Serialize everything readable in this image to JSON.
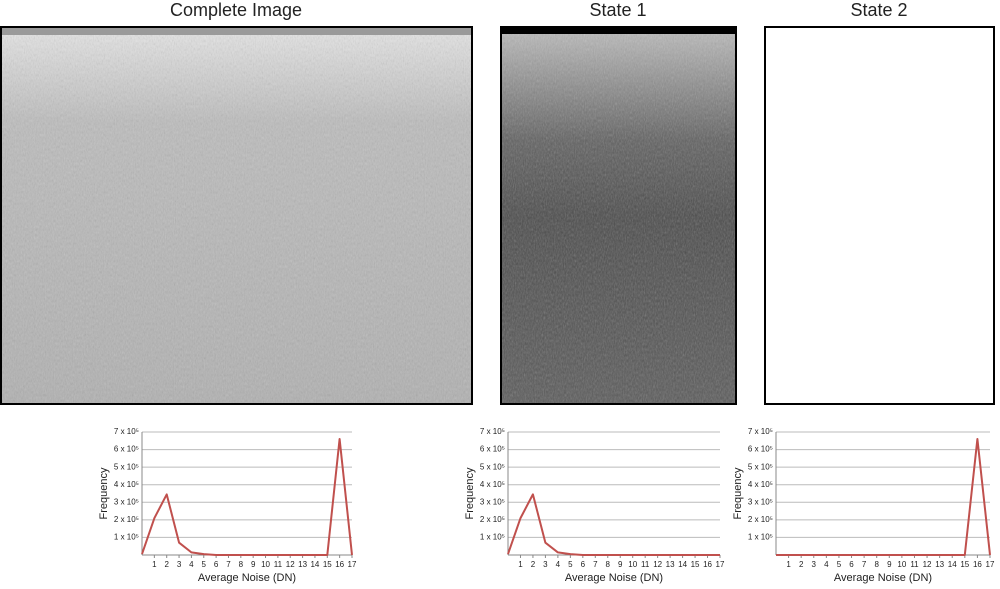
{
  "chart_data": [
    {
      "type": "line",
      "title": "Complete Image",
      "x_label": "Average Noise (DN)",
      "y_label": "Frequency",
      "x": [
        0,
        1,
        2,
        3,
        4,
        5,
        6,
        7,
        8,
        9,
        10,
        11,
        12,
        13,
        14,
        15,
        16,
        17
      ],
      "values": [
        5000,
        210000,
        345000,
        70000,
        15000,
        5000,
        0,
        0,
        0,
        0,
        0,
        0,
        0,
        0,
        0,
        0,
        660000,
        0
      ],
      "color": "#c0504d",
      "xlim": [
        0,
        17
      ],
      "xticks": [
        1,
        2,
        3,
        4,
        5,
        6,
        7,
        8,
        9,
        10,
        11,
        12,
        13,
        14,
        15,
        16,
        17
      ],
      "ylim": [
        0,
        700000
      ],
      "yticks": [
        {
          "value": 100000,
          "label": "1 x 10⁵"
        },
        {
          "value": 200000,
          "label": "2 x 10⁵"
        },
        {
          "value": 300000,
          "label": "3 x 10⁵"
        },
        {
          "value": 400000,
          "label": "4 x 10⁵"
        },
        {
          "value": 500000,
          "label": "5 x 10⁵"
        },
        {
          "value": 600000,
          "label": "6 x 10⁵"
        },
        {
          "value": 700000,
          "label": "7 x 10⁵"
        }
      ],
      "grid": true
    },
    {
      "type": "line",
      "title": "State 1",
      "x_label": "Average Noise (DN)",
      "y_label": "Frequency",
      "x": [
        0,
        1,
        2,
        3,
        4,
        5,
        6,
        7,
        8,
        9,
        10,
        11,
        12,
        13,
        14,
        15,
        16,
        17
      ],
      "values": [
        5000,
        210000,
        345000,
        70000,
        15000,
        5000,
        0,
        0,
        0,
        0,
        0,
        0,
        0,
        0,
        0,
        0,
        0,
        0
      ],
      "color": "#c0504d",
      "xlim": [
        0,
        17
      ],
      "xticks": [
        1,
        2,
        3,
        4,
        5,
        6,
        7,
        8,
        9,
        10,
        11,
        12,
        13,
        14,
        15,
        16,
        17
      ],
      "ylim": [
        0,
        700000
      ],
      "yticks": [
        {
          "value": 100000,
          "label": "1 x 10⁵"
        },
        {
          "value": 200000,
          "label": "2 x 10⁵"
        },
        {
          "value": 300000,
          "label": "3 x 10⁵"
        },
        {
          "value": 400000,
          "label": "4 x 10⁵"
        },
        {
          "value": 500000,
          "label": "5 x 10⁵"
        },
        {
          "value": 600000,
          "label": "6 x 10⁵"
        },
        {
          "value": 700000,
          "label": "7 x 10⁵"
        }
      ],
      "grid": true
    },
    {
      "type": "line",
      "title": "State 2",
      "x_label": "Average Noise (DN)",
      "y_label": "Frequency",
      "x": [
        0,
        1,
        2,
        3,
        4,
        5,
        6,
        7,
        8,
        9,
        10,
        11,
        12,
        13,
        14,
        15,
        16,
        17
      ],
      "values": [
        0,
        0,
        0,
        0,
        0,
        0,
        0,
        0,
        0,
        0,
        0,
        0,
        0,
        0,
        0,
        0,
        660000,
        0
      ],
      "color": "#c0504d",
      "xlim": [
        0,
        17
      ],
      "xticks": [
        1,
        2,
        3,
        4,
        5,
        6,
        7,
        8,
        9,
        10,
        11,
        12,
        13,
        14,
        15,
        16,
        17
      ],
      "ylim": [
        0,
        700000
      ],
      "yticks": [
        {
          "value": 100000,
          "label": "1 x 10⁵"
        },
        {
          "value": 200000,
          "label": "2 x 10⁵"
        },
        {
          "value": 300000,
          "label": "3 x 10⁵"
        },
        {
          "value": 400000,
          "label": "4 x 10⁵"
        },
        {
          "value": 500000,
          "label": "5 x 10⁵"
        },
        {
          "value": 600000,
          "label": "6 x 10⁵"
        },
        {
          "value": 700000,
          "label": "7 x 10⁵"
        }
      ],
      "grid": true
    }
  ]
}
